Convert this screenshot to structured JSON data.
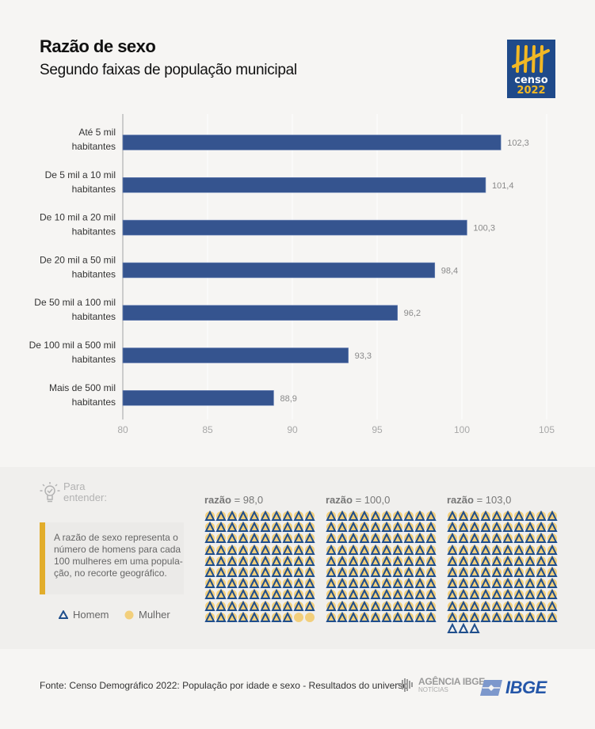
{
  "header": {
    "title": "Razão de sexo",
    "subtitle": "Segundo faixas de população municipal",
    "logo": {
      "icon": "censo-2022-logo",
      "line1": "censo",
      "line2": "2022"
    }
  },
  "chart_data": {
    "type": "bar",
    "orientation": "horizontal",
    "title": "Razão de sexo",
    "subtitle": "Segundo faixas de população municipal",
    "categories": [
      [
        "Até 5 mil",
        "habitantes"
      ],
      [
        "De 5 mil a 10 mil",
        "habitantes"
      ],
      [
        "De 10 mil a 20 mil",
        "habitantes"
      ],
      [
        "De 20 mil a 50 mil",
        "habitantes"
      ],
      [
        "De 50 mil a 100 mil",
        "habitantes"
      ],
      [
        "De 100 mil a 500 mil",
        "habitantes"
      ],
      [
        "Mais de 500 mil",
        "habitantes"
      ]
    ],
    "values": [
      102.3,
      101.4,
      100.3,
      98.4,
      96.2,
      93.3,
      88.9
    ],
    "value_labels": [
      "102,3",
      "101,4",
      "100,3",
      "98,4",
      "96,2",
      "93,3",
      "88,9"
    ],
    "xlim": [
      80,
      105
    ],
    "xticks": [
      80,
      85,
      90,
      95,
      100,
      105
    ],
    "xlabel": "",
    "ylabel": "",
    "grid": true,
    "bar_color": "#35548f"
  },
  "explainer": {
    "heading_line1": "Para",
    "heading_line2": "entender:",
    "heading_icon": "lightbulb-check-icon",
    "definition_lines": [
      "A razão de sexo representa o",
      "número de homens para cada",
      "100 mulheres em uma popula-",
      "ção, no recorte geográfico."
    ],
    "legend": [
      {
        "icon": "triangle-icon",
        "label": "Homem",
        "color": "#1f4e8c"
      },
      {
        "icon": "circle-icon",
        "label": "Mulher",
        "color": "#f2cf7c"
      }
    ],
    "examples": [
      {
        "label_bold": "razão",
        "label_rest": " = 98,0",
        "men": 98,
        "women": 100
      },
      {
        "label_bold": "razão",
        "label_rest": " = 100,0",
        "men": 100,
        "women": 100
      },
      {
        "label_bold": "razão",
        "label_rest": " = 103,0",
        "men": 103,
        "women": 100
      }
    ]
  },
  "footer": {
    "source": "Fonte: Censo Demográfico 2022: População por idade e sexo - Resultados do universo",
    "agencia_line1": "AGÊNCIA IBGE",
    "agencia_line2": "NOTÍCIAS",
    "ibge": "IBGE"
  }
}
